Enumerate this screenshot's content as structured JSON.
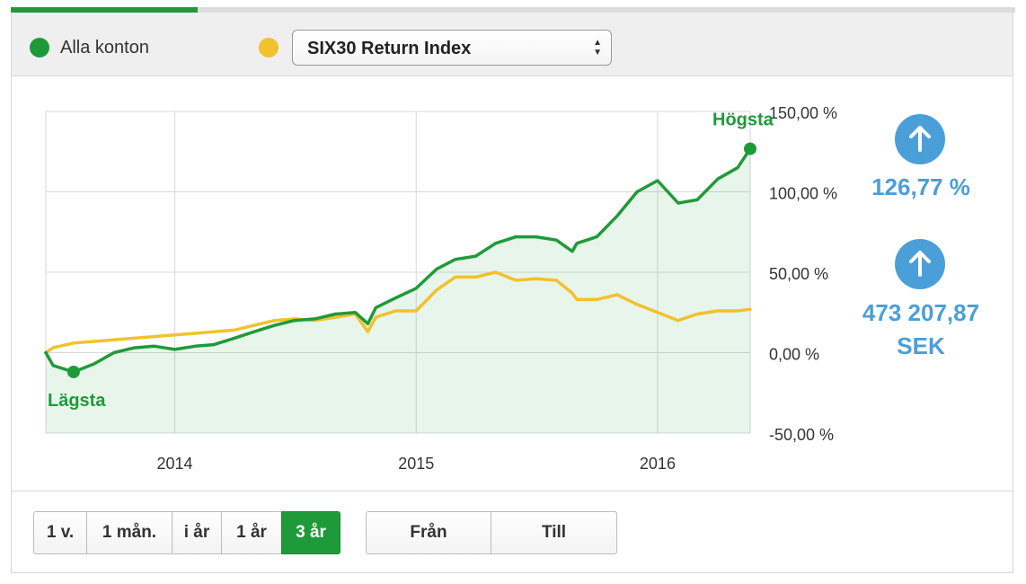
{
  "legend": {
    "series_a": {
      "label": "Alla konton",
      "color": "#1f9a3a"
    },
    "series_b": {
      "color": "#f2c12e"
    },
    "select_value": "SIX30 Return Index"
  },
  "stats": {
    "percent": "126,77 %",
    "value_line1": "473 207,87",
    "value_line2": "SEK",
    "color": "#4a9fd8"
  },
  "periods": [
    "1 v.",
    "1 mån.",
    "i år",
    "1 år",
    "3 år"
  ],
  "active_period": "3 år",
  "range_buttons": {
    "from": "Från",
    "to": "Till"
  },
  "chart_data": {
    "type": "area",
    "x_ticks": [
      "2014",
      "2015",
      "2016"
    ],
    "y_ticks": [
      "150,00 %",
      "100,00 %",
      "50,00 %",
      "0,00 %",
      "-50,00 %"
    ],
    "ylim": [
      -50,
      150
    ],
    "grid": true,
    "annotations": {
      "max": "Högsta",
      "min": "Lägsta"
    },
    "series": [
      {
        "color": "#1f9a3a",
        "x": [
          "2013-06-20",
          "2013-07-01",
          "2013-08-01",
          "2013-09-01",
          "2013-10-01",
          "2013-11-01",
          "2013-12-01",
          "2014-01-01",
          "2014-02-01",
          "2014-03-01",
          "2014-04-01",
          "2014-05-01",
          "2014-06-01",
          "2014-07-01",
          "2014-08-01",
          "2014-09-01",
          "2014-10-01",
          "2014-10-20",
          "2014-11-01",
          "2014-12-01",
          "2015-01-01",
          "2015-02-01",
          "2015-03-01",
          "2015-04-01",
          "2015-05-01",
          "2015-06-01",
          "2015-07-01",
          "2015-08-01",
          "2015-08-25",
          "2015-09-01",
          "2015-10-01",
          "2015-11-01",
          "2015-12-01",
          "2016-01-01",
          "2016-02-01",
          "2016-03-01",
          "2016-04-01",
          "2016-05-01",
          "2016-05-20"
        ],
        "y": [
          0,
          -8,
          -12,
          -7,
          0,
          3,
          4,
          2,
          4,
          5,
          9,
          13,
          17,
          20,
          21,
          24,
          25,
          18,
          28,
          34,
          40,
          52,
          58,
          60,
          68,
          72,
          72,
          70,
          63,
          68,
          72,
          85,
          100,
          107,
          93,
          95,
          108,
          115,
          126.77
        ]
      },
      {
        "color": "#f2c12e",
        "x": [
          "2013-06-20",
          "2013-07-01",
          "2013-08-01",
          "2013-09-01",
          "2013-10-01",
          "2013-11-01",
          "2013-12-01",
          "2014-01-01",
          "2014-02-01",
          "2014-03-01",
          "2014-04-01",
          "2014-05-01",
          "2014-06-01",
          "2014-07-01",
          "2014-08-01",
          "2014-09-01",
          "2014-10-01",
          "2014-10-20",
          "2014-11-01",
          "2014-12-01",
          "2015-01-01",
          "2015-02-01",
          "2015-03-01",
          "2015-04-01",
          "2015-05-01",
          "2015-06-01",
          "2015-07-01",
          "2015-08-01",
          "2015-08-25",
          "2015-09-01",
          "2015-10-01",
          "2015-11-01",
          "2015-12-01",
          "2016-01-01",
          "2016-02-01",
          "2016-03-01",
          "2016-04-01",
          "2016-05-01",
          "2016-05-20"
        ],
        "y": [
          0,
          3,
          6,
          7,
          8,
          9,
          10,
          11,
          12,
          13,
          14,
          17,
          20,
          21,
          20,
          22,
          24,
          13,
          22,
          26,
          26,
          39,
          47,
          47,
          50,
          45,
          46,
          45,
          37,
          33,
          33,
          36,
          30,
          25,
          20,
          24,
          26,
          26,
          27
        ]
      }
    ]
  }
}
